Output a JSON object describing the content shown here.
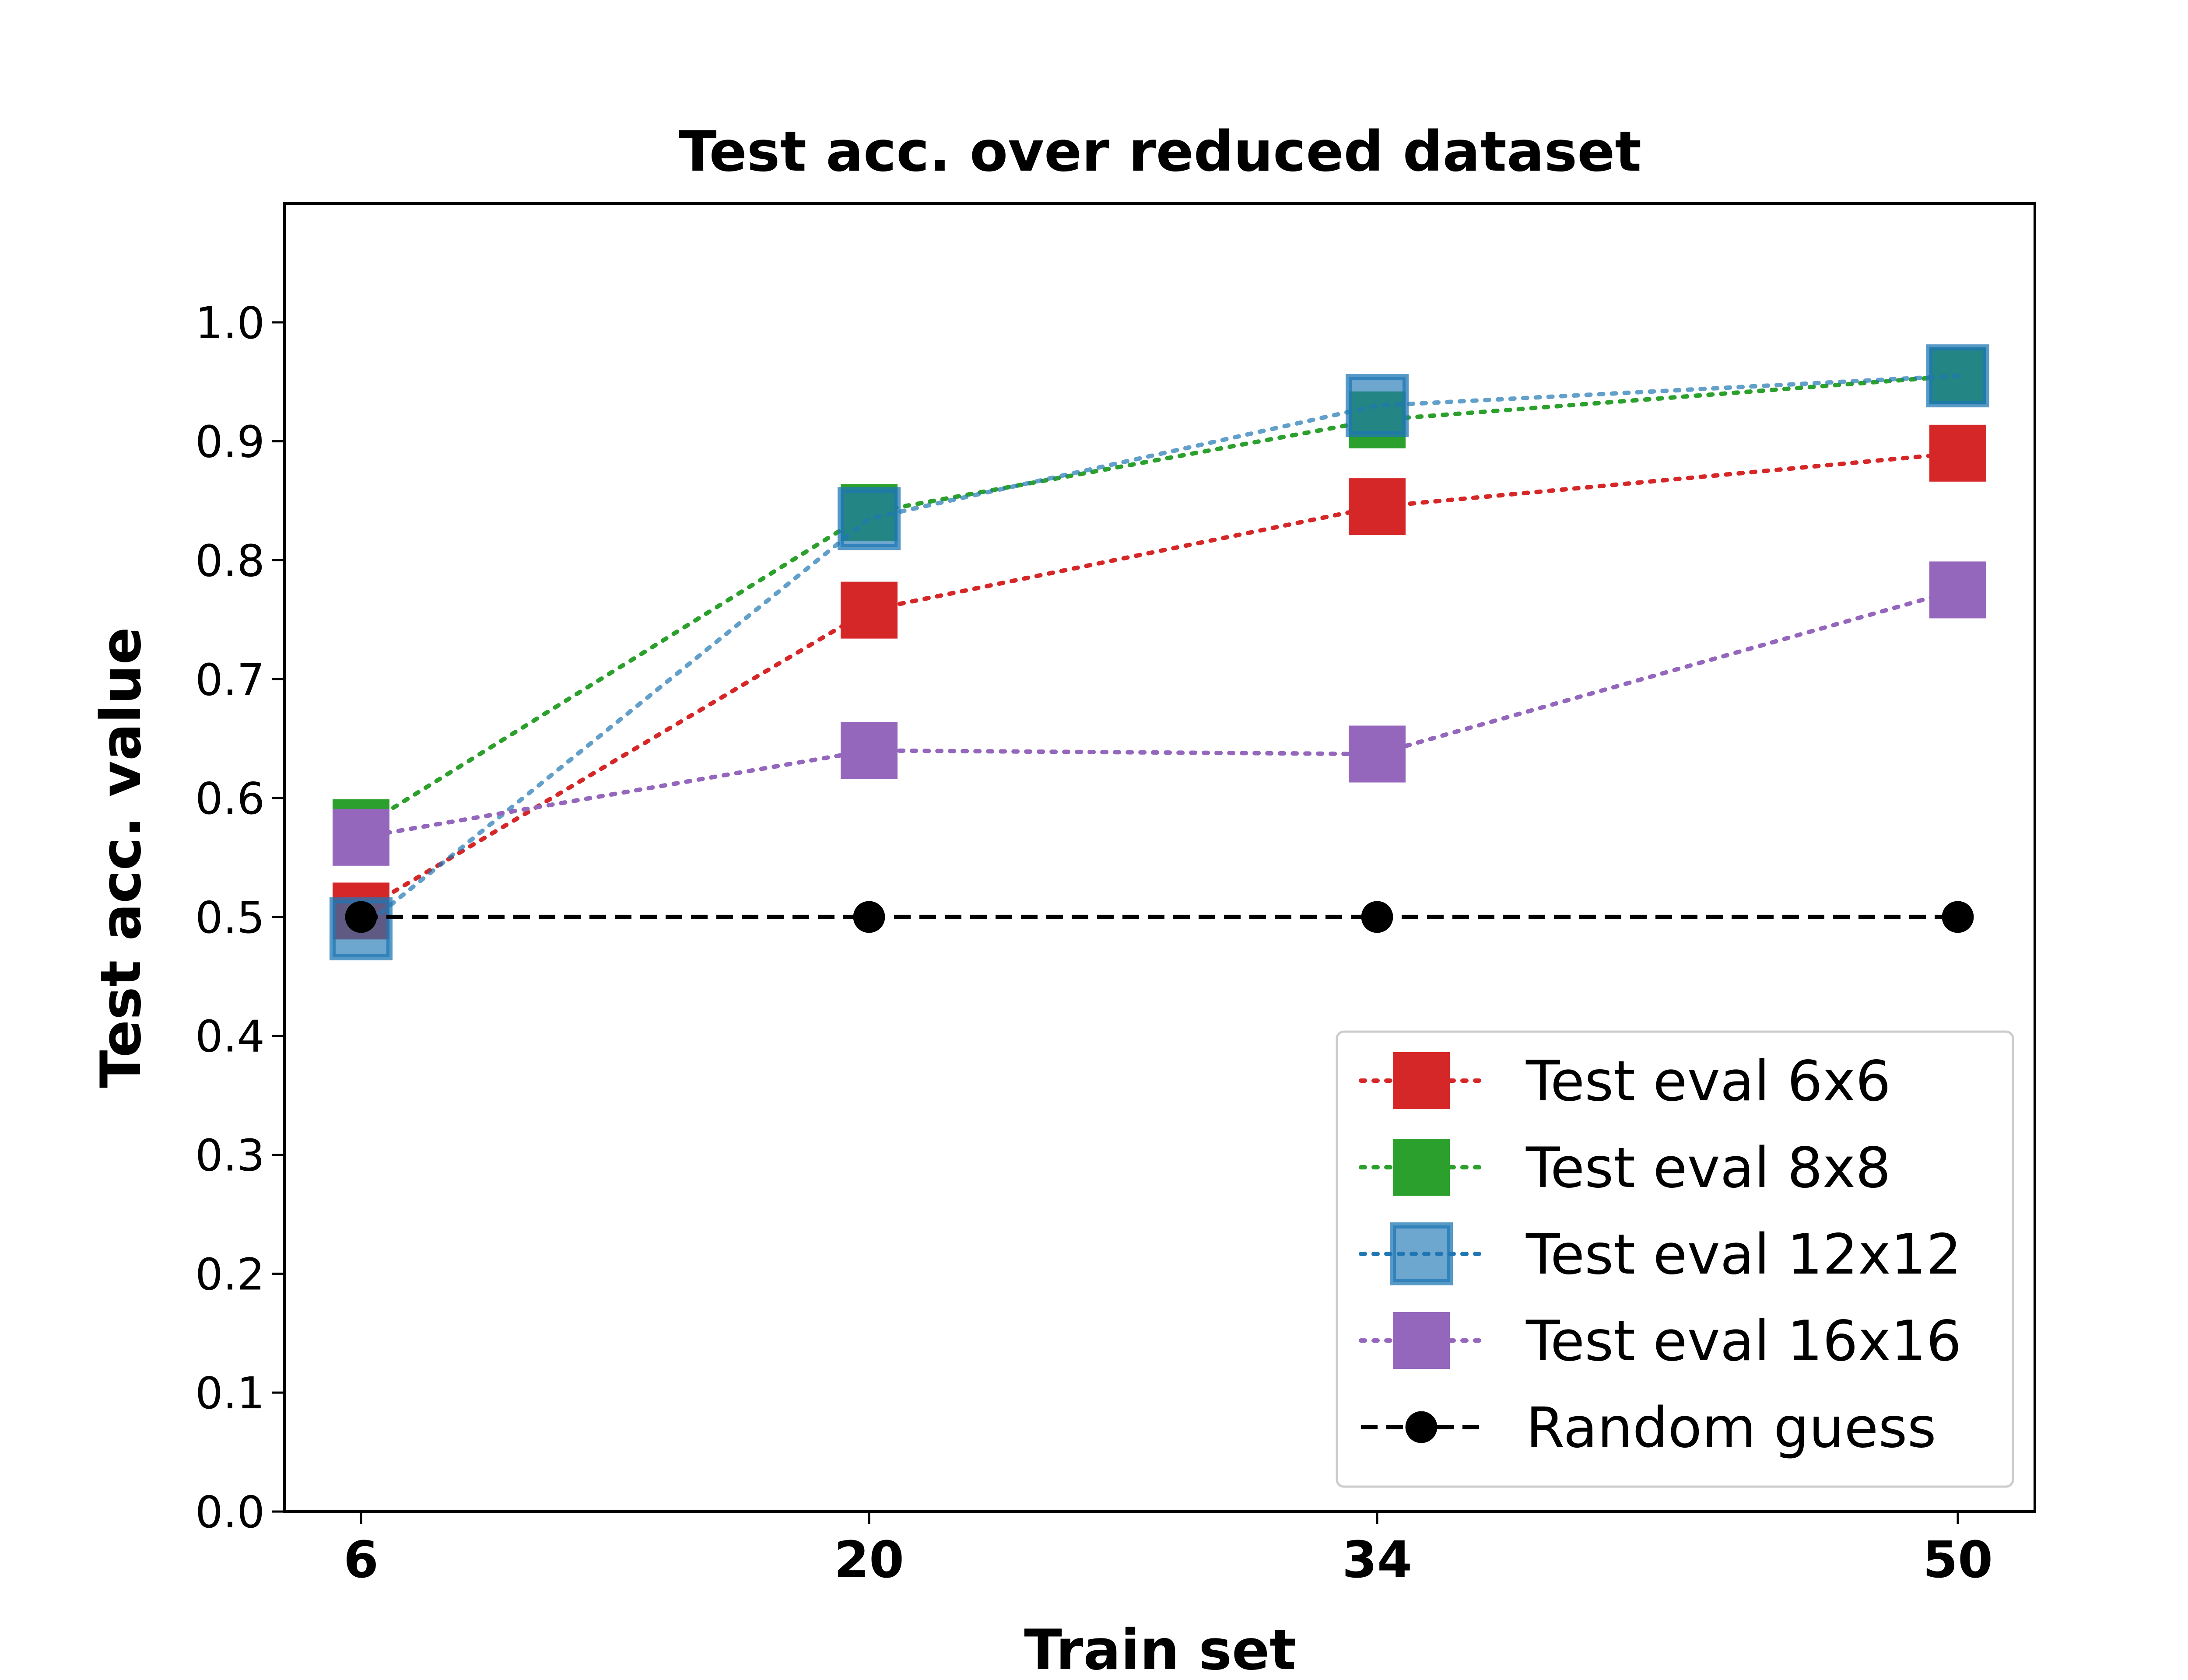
{
  "chart_data": {
    "type": "line",
    "title": "Test acc. over reduced dataset",
    "xlabel": "Train set",
    "ylabel": "Test acc. value",
    "categories": [
      "6",
      "20",
      "34",
      "50"
    ],
    "x": [
      6,
      20,
      34,
      50
    ],
    "ylim": [
      0,
      1.1
    ],
    "yticks": [
      0.0,
      0.1,
      0.2,
      0.3,
      0.4,
      0.5,
      0.6,
      0.7,
      0.8,
      0.9,
      1.0
    ],
    "ytick_labels": [
      "0.0",
      "0.1",
      "0.2",
      "0.3",
      "0.4",
      "0.5",
      "0.6",
      "0.7",
      "0.8",
      "0.9",
      "1.0"
    ],
    "grid": false,
    "legend_position": "lower-right",
    "series": [
      {
        "name": "Test eval 6x6",
        "values": [
          0.505,
          0.758,
          0.845,
          0.89
        ],
        "color": "#d62728",
        "line_style": "dotted",
        "marker": "square"
      },
      {
        "name": "Test eval 8x8",
        "values": [
          0.575,
          0.84,
          0.918,
          0.955
        ],
        "color": "#2ca02c",
        "line_style": "dotted",
        "marker": "square"
      },
      {
        "name": "Test eval 12x12",
        "values": [
          0.49,
          0.835,
          0.93,
          0.955
        ],
        "color": "#1f77b4",
        "line_style": "dotted",
        "marker": "square-translucent"
      },
      {
        "name": "Test eval 16x16",
        "values": [
          0.567,
          0.64,
          0.637,
          0.775
        ],
        "color": "#9467bd",
        "line_style": "dotted",
        "marker": "square"
      },
      {
        "name": "Random guess",
        "values": [
          0.5,
          0.5,
          0.5,
          0.5
        ],
        "color": "#000000",
        "line_style": "dashed",
        "marker": "circle"
      }
    ]
  }
}
